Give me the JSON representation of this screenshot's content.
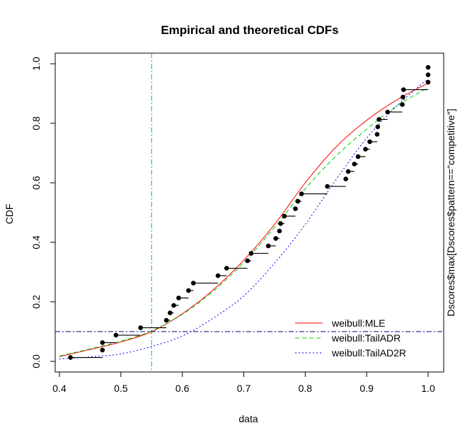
{
  "chart_data": {
    "type": "scatter",
    "title": "Empirical and theoretical CDFs",
    "xlabel": "data",
    "ylabel": "CDF",
    "right_label": "Dscores$max[Dscores$pattern==\"competitive\"]",
    "xlim": [
      0.4,
      1.0
    ],
    "ylim": [
      0.0,
      1.0
    ],
    "x_ticks": [
      "0.4",
      "0.5",
      "0.6",
      "0.7",
      "0.8",
      "0.9",
      "1.0"
    ],
    "y_ticks": [
      "0.0",
      "0.2",
      "0.4",
      "0.6",
      "0.8",
      "1.0"
    ],
    "grid": false,
    "legend_position": "bottom-right",
    "empirical": {
      "x": [
        0.418,
        0.47,
        0.47,
        0.492,
        0.532,
        0.574,
        0.58,
        0.586,
        0.594,
        0.61,
        0.618,
        0.658,
        0.672,
        0.706,
        0.712,
        0.74,
        0.752,
        0.758,
        0.76,
        0.766,
        0.784,
        0.788,
        0.794,
        0.836,
        0.866,
        0.87,
        0.88,
        0.886,
        0.898,
        0.905,
        0.917,
        0.918,
        0.92,
        0.934,
        0.958,
        0.959,
        0.96,
        1.0,
        1.0,
        1.0
      ],
      "y": [
        0.013,
        0.038,
        0.063,
        0.088,
        0.113,
        0.138,
        0.163,
        0.188,
        0.213,
        0.238,
        0.263,
        0.288,
        0.313,
        0.338,
        0.363,
        0.388,
        0.413,
        0.438,
        0.463,
        0.488,
        0.513,
        0.538,
        0.563,
        0.588,
        0.613,
        0.638,
        0.663,
        0.688,
        0.713,
        0.738,
        0.763,
        0.788,
        0.813,
        0.838,
        0.863,
        0.888,
        0.913,
        0.938,
        0.963,
        0.988
      ]
    },
    "series": [
      {
        "name": "weibull:MLE",
        "color": "#ff0000",
        "line_style": "solid",
        "x": [
          0.4,
          0.45,
          0.5,
          0.55,
          0.6,
          0.65,
          0.7,
          0.75,
          0.8,
          0.85,
          0.9,
          0.95,
          1.0
        ],
        "y": [
          0.016,
          0.04,
          0.065,
          0.1,
          0.16,
          0.24,
          0.34,
          0.46,
          0.6,
          0.72,
          0.81,
          0.88,
          0.935
        ]
      },
      {
        "name": "weibull:TailADR",
        "color": "#00cc00",
        "line_style": "dashed",
        "x": [
          0.4,
          0.45,
          0.5,
          0.55,
          0.6,
          0.65,
          0.7,
          0.75,
          0.8,
          0.85,
          0.9,
          0.95,
          1.0
        ],
        "y": [
          0.018,
          0.042,
          0.068,
          0.102,
          0.158,
          0.235,
          0.333,
          0.45,
          0.58,
          0.69,
          0.78,
          0.86,
          0.92
        ]
      },
      {
        "name": "weibull:TailAD2R",
        "color": "#0000ff",
        "line_style": "dotted",
        "x": [
          0.4,
          0.45,
          0.5,
          0.55,
          0.6,
          0.65,
          0.7,
          0.75,
          0.8,
          0.85,
          0.9,
          0.95,
          1.0
        ],
        "y": [
          0.008,
          0.015,
          0.025,
          0.05,
          0.085,
          0.145,
          0.22,
          0.33,
          0.46,
          0.61,
          0.75,
          0.86,
          0.95
        ]
      }
    ],
    "reference_lines": [
      {
        "orientation": "vertical",
        "value": 0.55,
        "color": "#00cc00",
        "line_style": "dashdot"
      },
      {
        "orientation": "horizontal",
        "value": 0.1,
        "color": "#000080",
        "line_style": "dashdot"
      }
    ]
  }
}
